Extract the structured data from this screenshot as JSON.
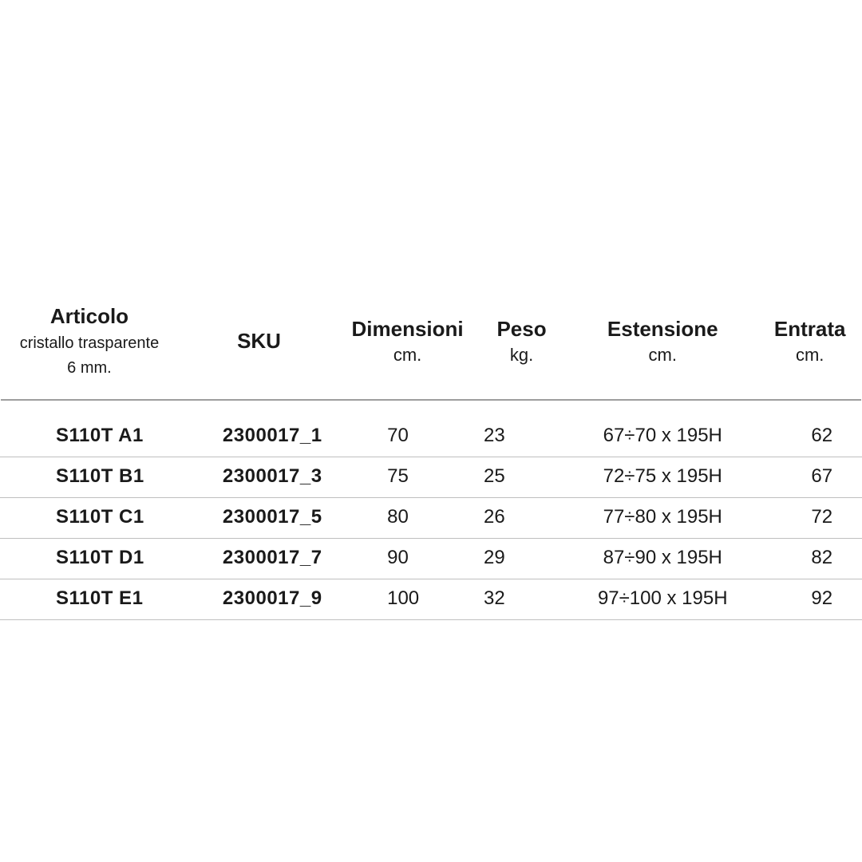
{
  "table": {
    "columns": [
      {
        "title": "Articolo",
        "sub1": "cristallo trasparente",
        "sub2": "6 mm."
      },
      {
        "title": "SKU"
      },
      {
        "title": "Dimensioni",
        "unit": "cm."
      },
      {
        "title": "Peso",
        "unit": "kg."
      },
      {
        "title": "Estensione",
        "unit": "cm."
      },
      {
        "title": "Entrata",
        "unit": "cm."
      }
    ],
    "rows": [
      {
        "articolo": "S110T A1",
        "sku": "2300017_1",
        "dim": "70",
        "peso": "23",
        "est": "67÷70  x  195H",
        "ent": "62"
      },
      {
        "articolo": "S110T B1",
        "sku": "2300017_3",
        "dim": "75",
        "peso": "25",
        "est": "72÷75  x  195H",
        "ent": "67"
      },
      {
        "articolo": "S110T C1",
        "sku": "2300017_5",
        "dim": "80",
        "peso": "26",
        "est": "77÷80  x  195H",
        "ent": "72"
      },
      {
        "articolo": "S110T D1",
        "sku": "2300017_7",
        "dim": "90",
        "peso": "29",
        "est": "87÷90  x  195H",
        "ent": "82"
      },
      {
        "articolo": "S110T E1",
        "sku": "2300017_9",
        "dim": "100",
        "peso": "32",
        "est": "97÷100 x 195H",
        "ent": "92"
      }
    ],
    "style": {
      "header_fontsize": 26,
      "header_fontweight": 700,
      "sub_fontsize": 20,
      "body_fontsize": 24,
      "bold_cols": [
        "articolo",
        "sku"
      ],
      "border_color": "#bfbfbf",
      "header_border_color": "#9e9e9e",
      "text_color": "#1a1a1a",
      "background_color": "#ffffff"
    }
  }
}
